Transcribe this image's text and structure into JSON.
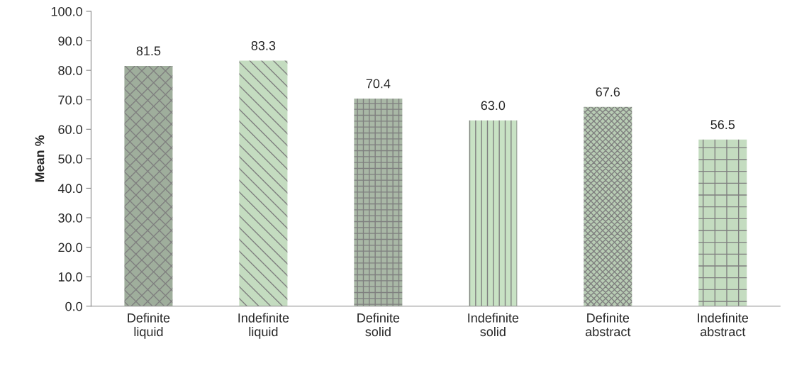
{
  "chart_data": {
    "type": "bar",
    "ylabel": "Mean %",
    "categories": [
      "Definite\nliquid",
      "Indefinite\nliquid",
      "Definite\nsolid",
      "Indefinite\nsolid",
      "Definite\nabstract",
      "Indefinite\nabstract"
    ],
    "values": [
      81.5,
      83.3,
      70.4,
      63.0,
      67.6,
      56.5
    ],
    "value_labels": [
      "81.5",
      "83.3",
      "70.4",
      "63.0",
      "67.6",
      "56.5"
    ],
    "colors": [
      "#9fae9c",
      "#c4dcc0",
      "#a9b8a6",
      "#c8e2c4",
      "#b8ccb4",
      "#c4dcc0"
    ],
    "ylim": [
      0,
      100
    ],
    "yticks": [
      {
        "value": 0,
        "label": "0.0"
      },
      {
        "value": 10,
        "label": "10.0"
      },
      {
        "value": 20,
        "label": "20.0"
      },
      {
        "value": 30,
        "label": "30.0"
      },
      {
        "value": 40,
        "label": "40.0"
      },
      {
        "value": 50,
        "label": "50.0"
      },
      {
        "value": 60,
        "label": "60.0"
      },
      {
        "value": 70,
        "label": "70.0"
      },
      {
        "value": 80,
        "label": "80.0"
      },
      {
        "value": 90,
        "label": "90.0"
      },
      {
        "value": 100,
        "label": "100.0"
      }
    ],
    "grid": false
  }
}
